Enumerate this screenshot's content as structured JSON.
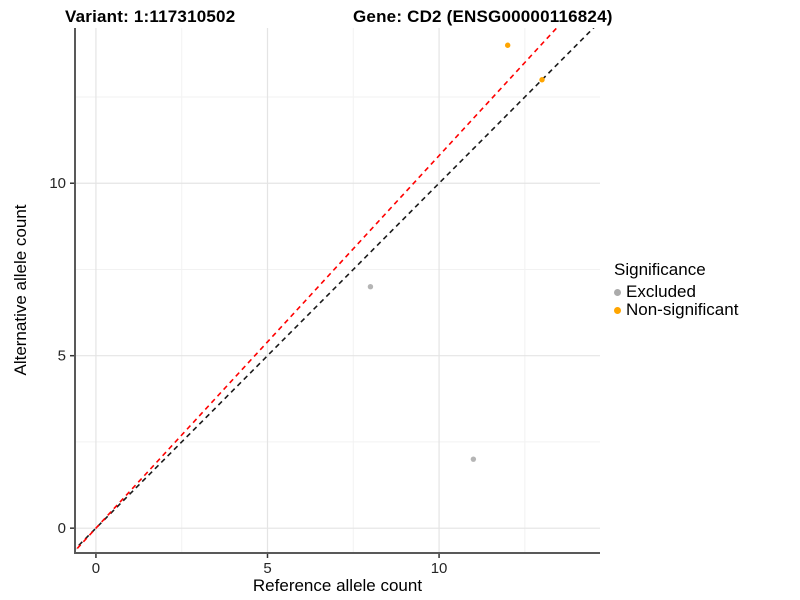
{
  "titles": {
    "variant": "Variant: 1:117310502",
    "gene": "Gene: CD2 (ENSG00000116824)"
  },
  "axes": {
    "x_label": "Reference allele count",
    "y_label": "Alternative allele count"
  },
  "legend": {
    "title": "Significance",
    "items": [
      {
        "label": "Excluded",
        "color": "#ABABAB"
      },
      {
        "label": "Non-significant",
        "color": "#FFA500"
      }
    ]
  },
  "chart_data": {
    "type": "scatter",
    "title": "Variant: 1:117310502 | Gene: CD2 (ENSG00000116824)",
    "xlabel": "Reference allele count",
    "ylabel": "Alternative allele count",
    "xlim": [
      -0.61,
      14.69
    ],
    "ylim": [
      -0.72,
      14.5
    ],
    "major_ticks": [
      0,
      5,
      10
    ],
    "minor_ticks": [
      2.5,
      7.5,
      12.5
    ],
    "grid": true,
    "legend_position": "right",
    "series": [
      {
        "name": "Excluded",
        "color": "#B5B5B5",
        "points": [
          {
            "x": 8,
            "y": 7
          },
          {
            "x": 11,
            "y": 2
          }
        ]
      },
      {
        "name": "Non-significant",
        "color": "#FFA500",
        "points": [
          {
            "x": 12,
            "y": 14
          },
          {
            "x": 13,
            "y": 13
          }
        ]
      }
    ],
    "lines": [
      {
        "name": "identity-line",
        "slope": 1.0,
        "intercept": 0,
        "color": "#1A1A1A",
        "dash": "5 4"
      },
      {
        "name": "ratio-line",
        "slope": 1.08,
        "intercept": 0,
        "color": "#FF0000",
        "dash": "5 4"
      }
    ],
    "style": {
      "grid_major_color": "#E4E4E4",
      "grid_minor_color": "#F2F2F2",
      "axis_line_color": "#595959",
      "tick_color": "#333333",
      "tick_label_color": "#262626"
    }
  }
}
